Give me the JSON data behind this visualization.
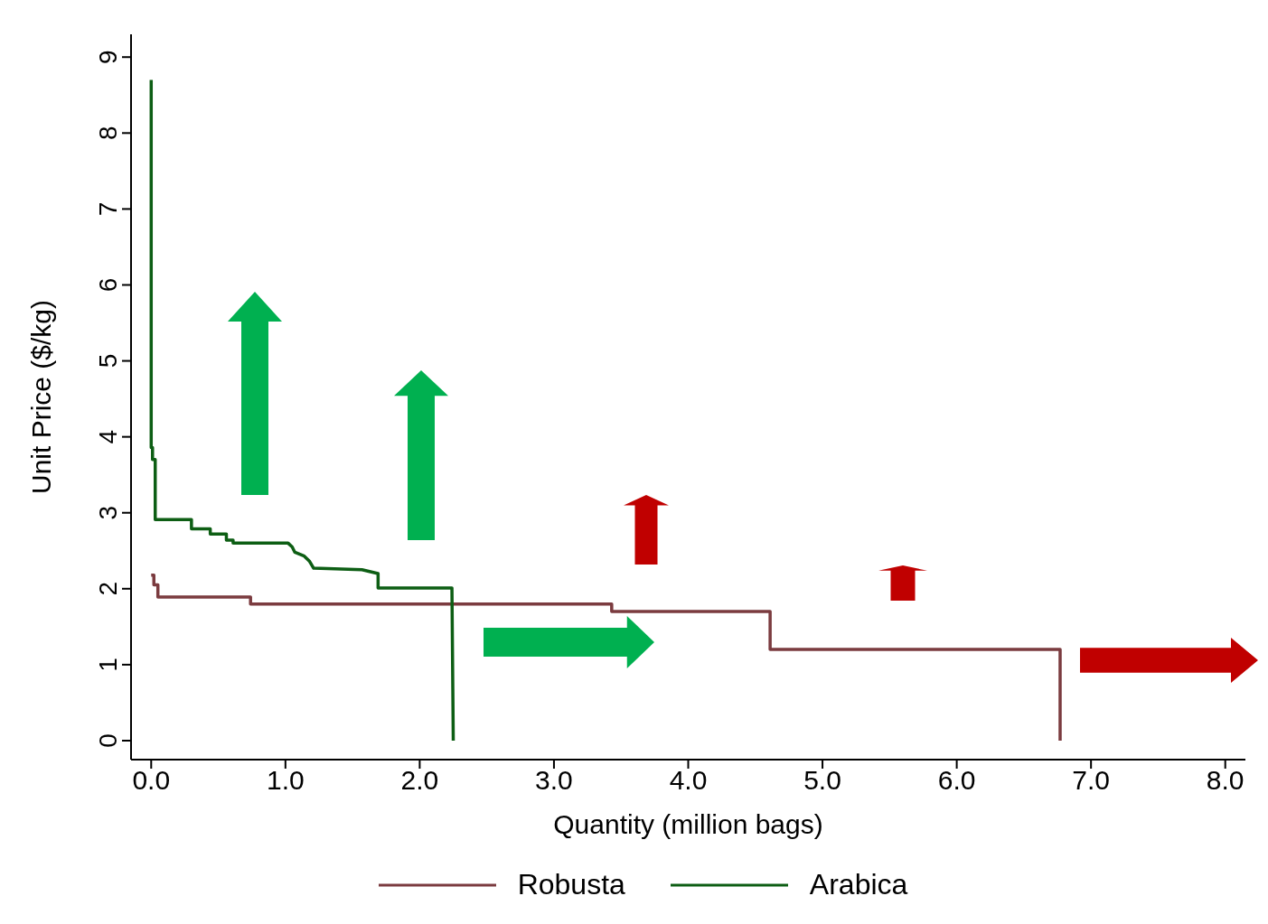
{
  "chart_data": {
    "type": "line",
    "xlabel": "Quantity (million bags)",
    "ylabel": "Unit Price ($/kg)",
    "xlim": [
      -0.15,
      8.15
    ],
    "xticks": [
      {
        "value": 0,
        "label": "0.0"
      },
      {
        "value": 1,
        "label": "1.0"
      },
      {
        "value": 2,
        "label": "2.0"
      },
      {
        "value": 3,
        "label": "3.0"
      },
      {
        "value": 4,
        "label": "4.0"
      },
      {
        "value": 5,
        "label": "5.0"
      },
      {
        "value": 6,
        "label": "6.0"
      },
      {
        "value": 7,
        "label": "7.0"
      },
      {
        "value": 8,
        "label": "8.0"
      }
    ],
    "ylim": [
      -0.25,
      9.3
    ],
    "yticks": [
      0,
      1,
      2,
      3,
      4,
      5,
      6,
      7,
      8,
      9
    ],
    "legend": "bottom",
    "marker": "none",
    "line_style": "solid",
    "series": [
      {
        "name": "Robusta",
        "color": "#7b3b3f",
        "x": [
          0,
          0.02,
          0.02,
          0.05,
          0.05,
          0.74,
          0.74,
          3.43,
          3.43,
          4.61,
          4.61,
          6.77,
          6.77
        ],
        "values": [
          2.18,
          2.18,
          2.05,
          2.05,
          1.89,
          1.89,
          1.8,
          1.8,
          1.7,
          1.7,
          1.2,
          1.2,
          0
        ]
      },
      {
        "name": "Arabica",
        "color": "#0d5e14",
        "x": [
          0,
          0,
          0.01,
          0.01,
          0.03,
          0.03,
          0.3,
          0.3,
          0.44,
          0.44,
          0.56,
          0.56,
          0.61,
          0.61,
          1.02,
          1.05,
          1.07,
          1.14,
          1.18,
          1.21,
          1.57,
          1.69,
          1.69,
          2.24,
          2.25
        ],
        "values": [
          8.7,
          3.86,
          3.86,
          3.7,
          3.7,
          2.91,
          2.91,
          2.79,
          2.79,
          2.72,
          2.72,
          2.64,
          2.64,
          2.6,
          2.6,
          2.55,
          2.48,
          2.43,
          2.36,
          2.27,
          2.25,
          2.2,
          2.01,
          2.01,
          0
        ]
      }
    ]
  }
}
